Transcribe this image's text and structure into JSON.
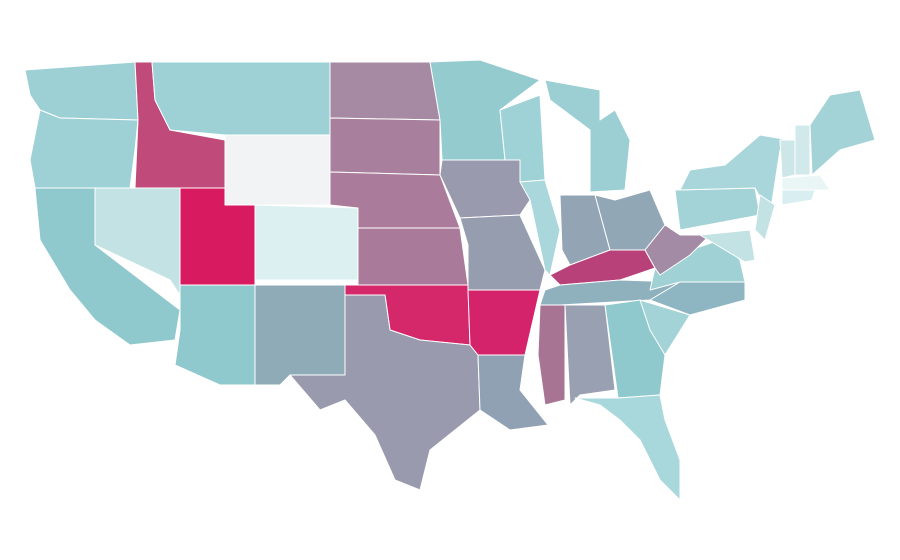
{
  "map": {
    "region_colors": [
      "#9dd0d4",
      "#9ed1d5",
      "#8fc9cd",
      "#c3e2e4",
      "#c04a7a",
      "#9ed1d5",
      "#f2f3f4",
      "#d81b60",
      "#dceff1",
      "#90c9cd",
      "#8fabb8",
      "#a68aa3",
      "#a87f9d",
      "#ab7b9b",
      "#aa7a9b",
      "#d4286a",
      "#9a9aae",
      "#93cbcf",
      "#9a9aae",
      "#959dae",
      "#d4236b",
      "#8fa1b3",
      "#9fd2d6",
      "#aad7db",
      "#9ccfd3",
      "#93a4b4",
      "#92a7b6",
      "#b9417a",
      "#8fb0bd",
      "#a87494",
      "#98a0b1",
      "#8fc9cd",
      "#a8d8dc",
      "#a3d3d7",
      "#8db5c2",
      "#9fd1d5",
      "#a38aa5",
      "#a3d3d7",
      "#a9d6da",
      "#c3e2e4",
      "#c3e2e4",
      "#cde7e9",
      "#d2e9eb",
      "#a3d3d7",
      "#eaf5f6",
      "#d9eef0"
    ]
  }
}
